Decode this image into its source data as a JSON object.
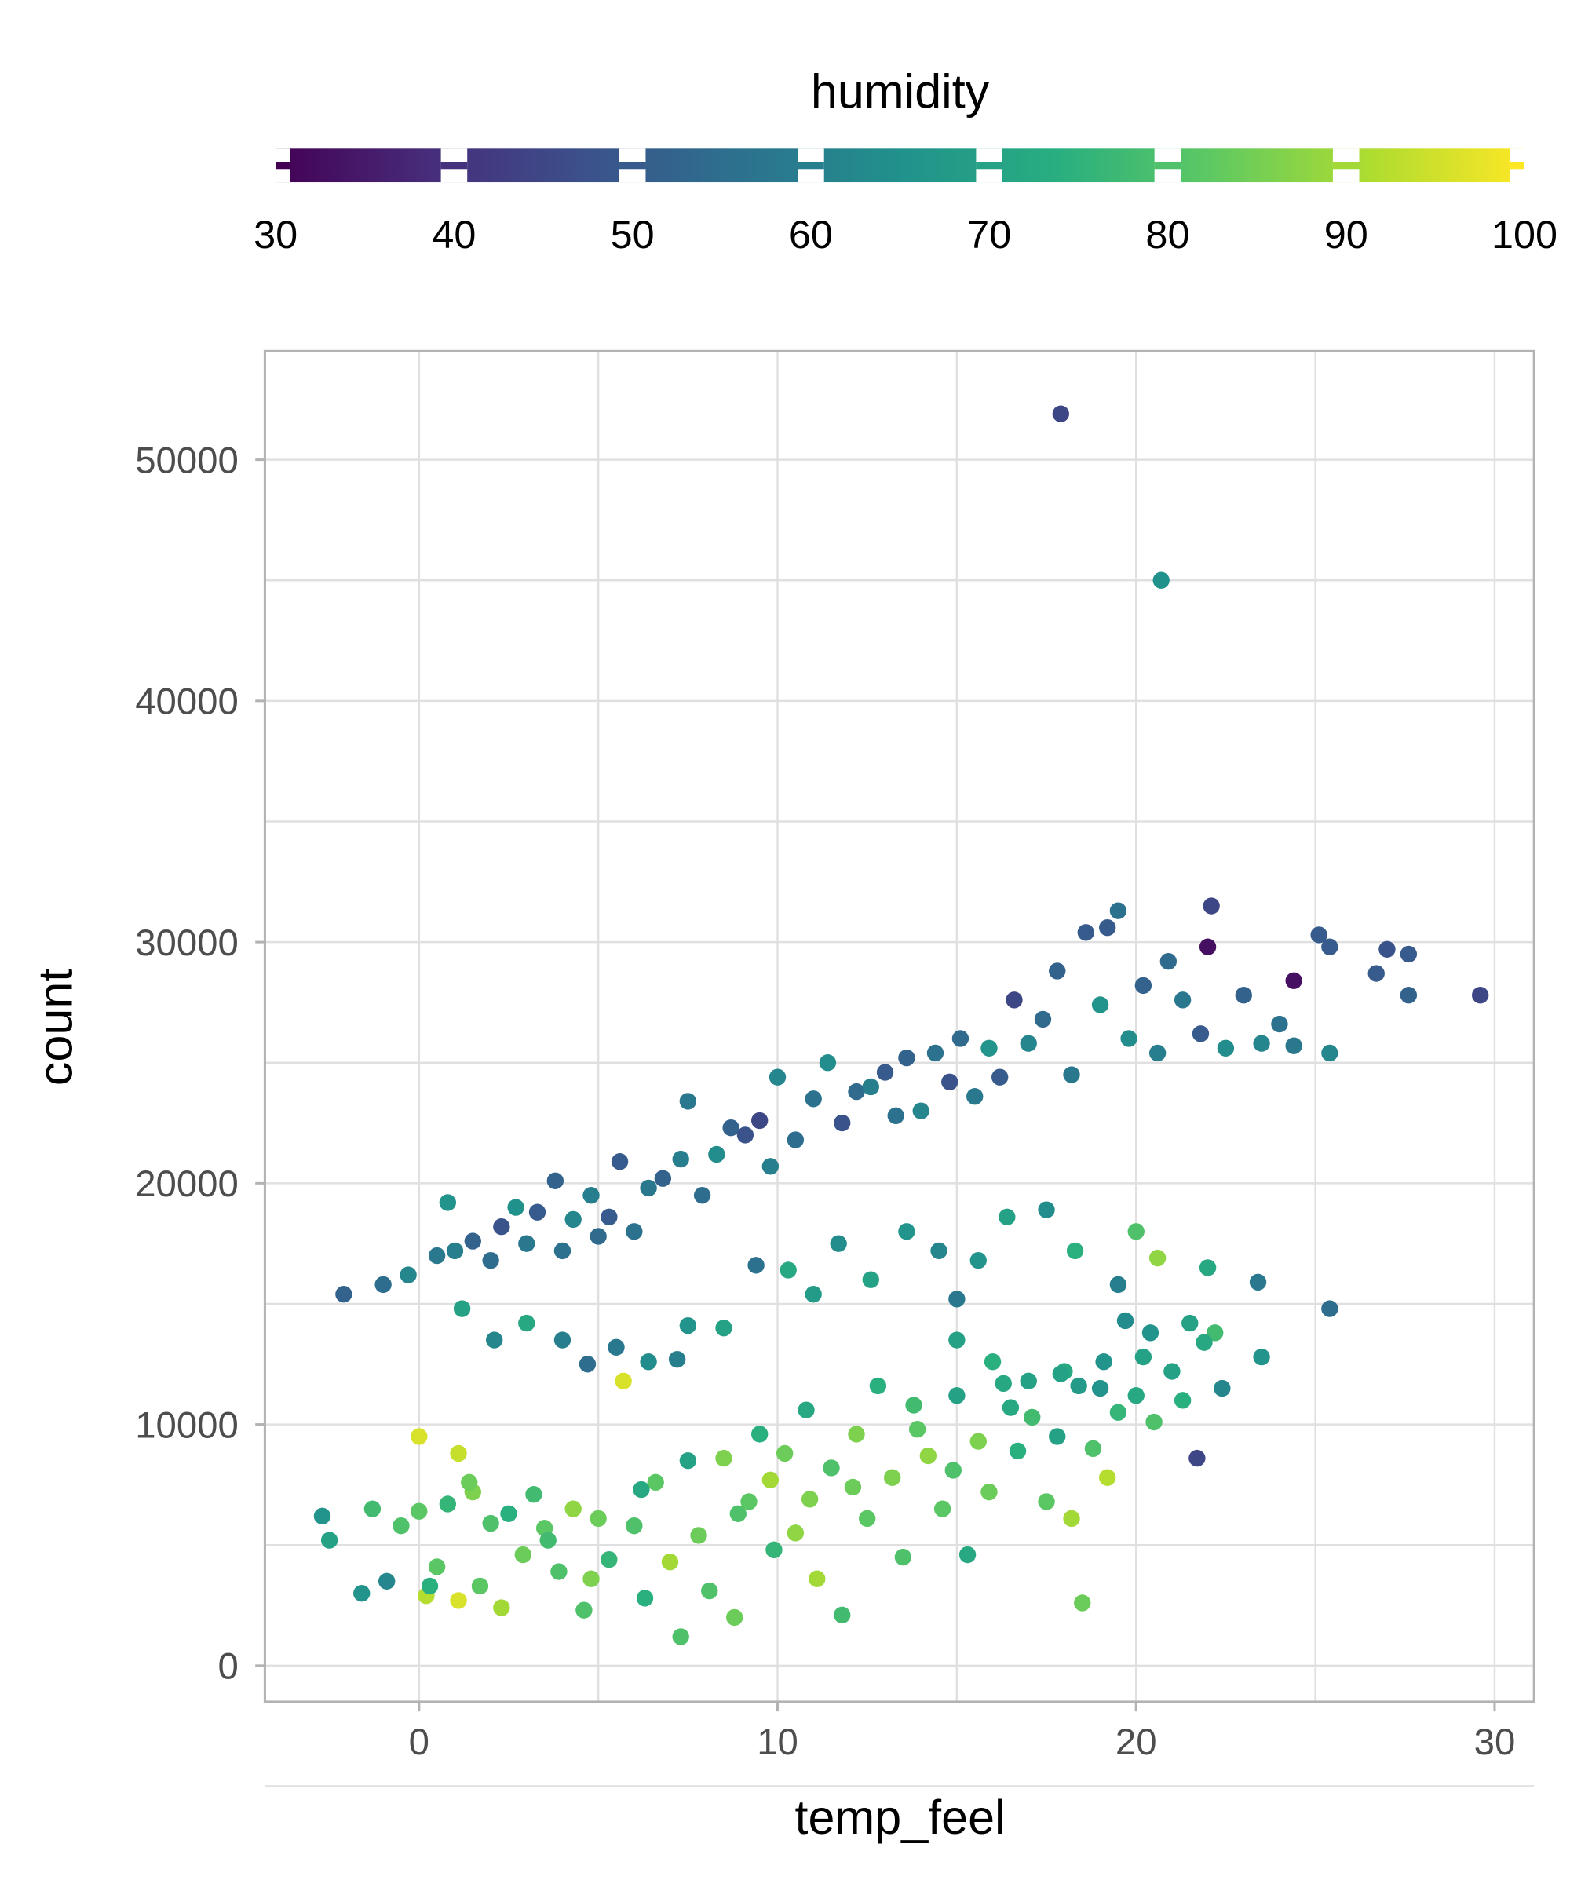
{
  "chart_data": {
    "type": "scatter",
    "title": "",
    "xlabel": "temp_feel",
    "ylabel": "count",
    "xlim": [
      -4.3,
      31.1
    ],
    "ylim": [
      -1500,
      54500
    ],
    "x_ticks": [
      0,
      10,
      20,
      30
    ],
    "y_ticks": [
      0,
      10000,
      20000,
      30000,
      40000,
      50000
    ],
    "x_tick_labels": [
      "0",
      "10",
      "20",
      "30"
    ],
    "y_tick_labels": [
      "0",
      "10000",
      "20000",
      "30000",
      "40000",
      "50000"
    ],
    "grid": true,
    "color_variable": "humidity",
    "color_scale": "viridis",
    "color_range": [
      30,
      100
    ],
    "legend": {
      "title": "humidity",
      "position": "top",
      "ticks": [
        30,
        40,
        50,
        60,
        70,
        80,
        90,
        100
      ],
      "tick_labels": [
        "30",
        "40",
        "50",
        "60",
        "70",
        "80",
        "90",
        "100"
      ]
    },
    "points_columns": [
      "temp_feel",
      "count",
      "humidity"
    ],
    "points": [
      [
        17.9,
        51900,
        45
      ],
      [
        20.7,
        45000,
        65
      ],
      [
        29.6,
        27800,
        45
      ],
      [
        24.4,
        28400,
        33
      ],
      [
        22,
        29800,
        33
      ],
      [
        -2.1,
        15400,
        52
      ],
      [
        -1,
        15800,
        55
      ],
      [
        -0.3,
        16200,
        62
      ],
      [
        0.5,
        17000,
        58
      ],
      [
        1,
        17200,
        60
      ],
      [
        1.5,
        17600,
        52
      ],
      [
        2,
        16800,
        55
      ],
      [
        2.3,
        18200,
        48
      ],
      [
        2.7,
        19000,
        65
      ],
      [
        3,
        17500,
        58
      ],
      [
        3.3,
        18800,
        50
      ],
      [
        3.8,
        20100,
        52
      ],
      [
        4,
        17200,
        56
      ],
      [
        4.3,
        18500,
        62
      ],
      [
        4.8,
        19500,
        60
      ],
      [
        5,
        17800,
        54
      ],
      [
        5.3,
        18600,
        50
      ],
      [
        5.6,
        20900,
        50
      ],
      [
        6,
        18000,
        56
      ],
      [
        6.4,
        19800,
        58
      ],
      [
        6.8,
        20200,
        52
      ],
      [
        7.3,
        21000,
        60
      ],
      [
        7.5,
        23400,
        58
      ],
      [
        7.9,
        19500,
        55
      ],
      [
        8.3,
        21200,
        64
      ],
      [
        8.7,
        22300,
        52
      ],
      [
        9.1,
        22000,
        48
      ],
      [
        9.5,
        22600,
        45
      ],
      [
        9.8,
        20700,
        60
      ],
      [
        10,
        24400,
        62
      ],
      [
        10.5,
        21800,
        55
      ],
      [
        11,
        23500,
        56
      ],
      [
        11.4,
        25000,
        64
      ],
      [
        11.8,
        22500,
        48
      ],
      [
        12.2,
        23800,
        54
      ],
      [
        12.6,
        24000,
        60
      ],
      [
        13,
        24600,
        50
      ],
      [
        13.3,
        22800,
        56
      ],
      [
        13.6,
        25200,
        52
      ],
      [
        14,
        23000,
        62
      ],
      [
        14.4,
        25400,
        56
      ],
      [
        14.8,
        24200,
        48
      ],
      [
        15.1,
        26000,
        54
      ],
      [
        15.5,
        23600,
        58
      ],
      [
        15.9,
        25600,
        66
      ],
      [
        16.2,
        24400,
        50
      ],
      [
        16.6,
        27600,
        45
      ],
      [
        17,
        25800,
        62
      ],
      [
        17.4,
        26800,
        54
      ],
      [
        17.8,
        28800,
        52
      ],
      [
        18.2,
        24500,
        58
      ],
      [
        18.6,
        30400,
        50
      ],
      [
        19,
        27400,
        66
      ],
      [
        19.2,
        30600,
        50
      ],
      [
        19.5,
        31300,
        56
      ],
      [
        19.8,
        26000,
        64
      ],
      [
        20.2,
        28200,
        52
      ],
      [
        20.6,
        25400,
        60
      ],
      [
        20.9,
        29200,
        54
      ],
      [
        21.3,
        27600,
        58
      ],
      [
        21.8,
        26200,
        50
      ],
      [
        22.1,
        31500,
        45
      ],
      [
        22.5,
        25600,
        64
      ],
      [
        23,
        27800,
        52
      ],
      [
        23.5,
        25800,
        62
      ],
      [
        24,
        26600,
        56
      ],
      [
        24.4,
        25700,
        58
      ],
      [
        25.1,
        30300,
        50
      ],
      [
        25.4,
        29800,
        50
      ],
      [
        25.4,
        25400,
        62
      ],
      [
        27,
        29700,
        48
      ],
      [
        27.6,
        29500,
        50
      ],
      [
        27.6,
        27800,
        52
      ],
      [
        26.7,
        28700,
        50
      ],
      [
        0.8,
        19200,
        66
      ],
      [
        1.2,
        14800,
        70
      ],
      [
        2.1,
        13500,
        62
      ],
      [
        3,
        14200,
        72
      ],
      [
        4,
        13500,
        60
      ],
      [
        4.7,
        12500,
        55
      ],
      [
        5.5,
        13200,
        58
      ],
      [
        6.4,
        12600,
        64
      ],
      [
        7.2,
        12700,
        60
      ],
      [
        7.5,
        14100,
        66
      ],
      [
        8.5,
        14000,
        70
      ],
      [
        9.4,
        16600,
        56
      ],
      [
        10.3,
        16400,
        72
      ],
      [
        11,
        15400,
        68
      ],
      [
        11.7,
        17500,
        64
      ],
      [
        12.6,
        16000,
        70
      ],
      [
        13.6,
        18000,
        66
      ],
      [
        14.5,
        17200,
        62
      ],
      [
        15,
        15200,
        58
      ],
      [
        15.6,
        16800,
        66
      ],
      [
        16.4,
        18600,
        70
      ],
      [
        17.5,
        18900,
        64
      ],
      [
        18.3,
        17200,
        74
      ],
      [
        19.5,
        15800,
        60
      ],
      [
        20,
        18000,
        80
      ],
      [
        20.6,
        16900,
        88
      ],
      [
        22,
        16500,
        72
      ],
      [
        23.4,
        15900,
        58
      ],
      [
        25.4,
        14800,
        55
      ],
      [
        22.4,
        11500,
        62
      ],
      [
        23.5,
        12800,
        66
      ],
      [
        21.5,
        14200,
        70
      ],
      [
        22.2,
        13800,
        78
      ],
      [
        20.2,
        12800,
        70
      ],
      [
        19,
        11500,
        66
      ],
      [
        18,
        12200,
        72
      ],
      [
        17,
        11800,
        70
      ],
      [
        16,
        12600,
        74
      ],
      [
        15,
        13500,
        70
      ],
      [
        -2.7,
        6200,
        66
      ],
      [
        -2.5,
        5200,
        70
      ],
      [
        -1.6,
        3000,
        66
      ],
      [
        -1.3,
        6500,
        78
      ],
      [
        -0.9,
        3500,
        62
      ],
      [
        -0.5,
        5800,
        80
      ],
      [
        0,
        9500,
        96
      ],
      [
        0,
        6400,
        82
      ],
      [
        0.2,
        2900,
        92
      ],
      [
        0.5,
        4100,
        82
      ],
      [
        0.8,
        6700,
        76
      ],
      [
        1.1,
        2700,
        96
      ],
      [
        1.1,
        8800,
        94
      ],
      [
        1.5,
        7200,
        86
      ],
      [
        1.7,
        3300,
        82
      ],
      [
        2,
        5900,
        80
      ],
      [
        2.3,
        2400,
        90
      ],
      [
        2.5,
        6300,
        74
      ],
      [
        2.9,
        4600,
        84
      ],
      [
        3.2,
        7100,
        78
      ],
      [
        3.5,
        5700,
        82
      ],
      [
        3.9,
        3900,
        80
      ],
      [
        4.3,
        6500,
        88
      ],
      [
        4.6,
        2300,
        80
      ],
      [
        5,
        6100,
        84
      ],
      [
        5.3,
        4400,
        76
      ],
      [
        5.7,
        11800,
        96
      ],
      [
        6,
        5800,
        80
      ],
      [
        6.3,
        2800,
        74
      ],
      [
        6.6,
        7600,
        82
      ],
      [
        7,
        4300,
        90
      ],
      [
        7.3,
        1200,
        80
      ],
      [
        7.5,
        8500,
        70
      ],
      [
        7.8,
        5400,
        84
      ],
      [
        8.1,
        3100,
        80
      ],
      [
        8.5,
        8600,
        86
      ],
      [
        8.8,
        2000,
        84
      ],
      [
        9.2,
        6800,
        82
      ],
      [
        9.5,
        9600,
        74
      ],
      [
        9.9,
        4800,
        76
      ],
      [
        10.2,
        8800,
        84
      ],
      [
        10.5,
        5500,
        88
      ],
      [
        10.8,
        10600,
        72
      ],
      [
        11.1,
        3600,
        90
      ],
      [
        11.5,
        8200,
        80
      ],
      [
        11.8,
        2100,
        78
      ],
      [
        12.2,
        9600,
        86
      ],
      [
        12.5,
        6100,
        82
      ],
      [
        12.8,
        11600,
        74
      ],
      [
        13.2,
        7800,
        86
      ],
      [
        13.5,
        4500,
        80
      ],
      [
        13.8,
        10800,
        78
      ],
      [
        14.2,
        8700,
        88
      ],
      [
        14.6,
        6500,
        82
      ],
      [
        15,
        11200,
        70
      ],
      [
        15.3,
        4600,
        72
      ],
      [
        15.6,
        9300,
        86
      ],
      [
        15.9,
        7200,
        84
      ],
      [
        16.3,
        11700,
        72
      ],
      [
        16.7,
        8900,
        74
      ],
      [
        17.1,
        10300,
        78
      ],
      [
        17.5,
        6800,
        82
      ],
      [
        17.8,
        9500,
        70
      ],
      [
        18.2,
        6100,
        90
      ],
      [
        18.5,
        2600,
        84
      ],
      [
        18.8,
        9000,
        80
      ],
      [
        19.2,
        7800,
        92
      ],
      [
        19.5,
        10500,
        76
      ],
      [
        20,
        11200,
        72
      ],
      [
        20.5,
        10100,
        80
      ],
      [
        21,
        12200,
        70
      ],
      [
        21.3,
        11000,
        74
      ],
      [
        21.7,
        8600,
        45
      ],
      [
        0.3,
        3300,
        74
      ],
      [
        1.4,
        7600,
        84
      ],
      [
        3.6,
        5200,
        78
      ],
      [
        4.8,
        3600,
        86
      ],
      [
        6.2,
        7300,
        72
      ],
      [
        8.9,
        6300,
        80
      ],
      [
        9.8,
        7700,
        90
      ],
      [
        10.9,
        6900,
        86
      ],
      [
        12.1,
        7400,
        84
      ],
      [
        13.9,
        9800,
        82
      ],
      [
        14.9,
        8100,
        80
      ],
      [
        16.5,
        10700,
        72
      ],
      [
        17.9,
        12100,
        70
      ],
      [
        18.4,
        11600,
        68
      ],
      [
        19.1,
        12600,
        66
      ],
      [
        19.7,
        14300,
        64
      ],
      [
        20.4,
        13800,
        66
      ],
      [
        21.9,
        13400,
        72
      ]
    ]
  }
}
